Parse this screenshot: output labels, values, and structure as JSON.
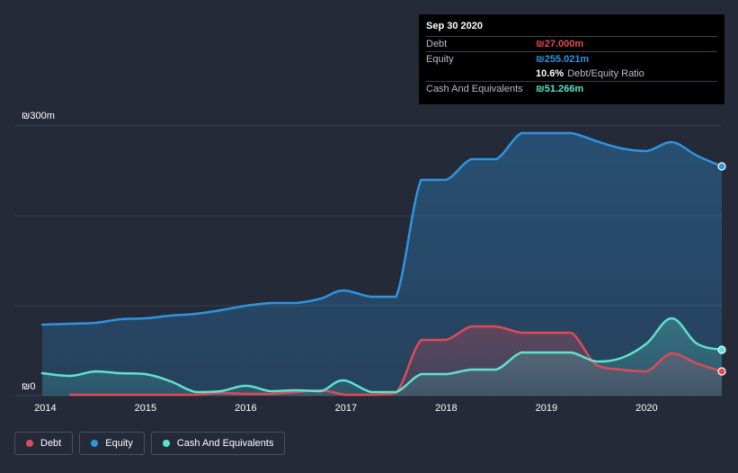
{
  "colors": {
    "debt": "#e04a57",
    "equity": "#2f94e0",
    "cash": "#5ee2d0",
    "grid": "#3a404c"
  },
  "tooltip": {
    "date": "Sep 30 2020",
    "debt_label": "Debt",
    "debt_value": "₪27.000m",
    "equity_label": "Equity",
    "equity_value": "₪255.021m",
    "ratio_value": "10.6%",
    "ratio_label": "Debt/Equity Ratio",
    "cash_label": "Cash And Equivalents",
    "cash_value": "₪51.266m"
  },
  "legend": [
    {
      "label": "Debt",
      "key": "debt"
    },
    {
      "label": "Equity",
      "key": "equity"
    },
    {
      "label": "Cash And Equivalents",
      "key": "cash"
    }
  ],
  "chart_data": {
    "type": "area",
    "ylim": [
      0,
      300
    ],
    "xlim": [
      2013.97,
      2020.75
    ],
    "ytick_labels": [
      {
        "value": 300,
        "label": "₪300m"
      },
      {
        "value": 0,
        "label": "₪0"
      }
    ],
    "xtick_labels": [
      {
        "value": 2014,
        "label": "2014"
      },
      {
        "value": 2015,
        "label": "2015"
      },
      {
        "value": 2016,
        "label": "2016"
      },
      {
        "value": 2017,
        "label": "2017"
      },
      {
        "value": 2018,
        "label": "2018"
      },
      {
        "value": 2019,
        "label": "2019"
      },
      {
        "value": 2020,
        "label": "2020"
      }
    ],
    "grid": true,
    "series": [
      {
        "name": "Equity",
        "key": "equity",
        "points": [
          [
            2013.97,
            79
          ],
          [
            2014.25,
            80
          ],
          [
            2014.5,
            81
          ],
          [
            2014.75,
            85
          ],
          [
            2015.0,
            86
          ],
          [
            2015.25,
            89
          ],
          [
            2015.5,
            91
          ],
          [
            2015.75,
            95
          ],
          [
            2016.0,
            100
          ],
          [
            2016.25,
            103
          ],
          [
            2016.5,
            103
          ],
          [
            2016.75,
            108
          ],
          [
            2016.97,
            117
          ],
          [
            2017.25,
            110
          ],
          [
            2017.5,
            110
          ],
          [
            2017.75,
            240
          ],
          [
            2018.0,
            240
          ],
          [
            2018.25,
            263
          ],
          [
            2018.5,
            263
          ],
          [
            2018.75,
            292
          ],
          [
            2019.0,
            292
          ],
          [
            2019.25,
            292
          ],
          [
            2019.5,
            283
          ],
          [
            2019.75,
            275
          ],
          [
            2020.0,
            272
          ],
          [
            2020.25,
            282
          ],
          [
            2020.5,
            267
          ],
          [
            2020.75,
            255
          ]
        ]
      },
      {
        "name": "Debt",
        "key": "debt",
        "points": [
          [
            2014.25,
            1
          ],
          [
            2014.5,
            1
          ],
          [
            2014.75,
            1
          ],
          [
            2015.0,
            1
          ],
          [
            2015.25,
            1
          ],
          [
            2015.5,
            1
          ],
          [
            2015.75,
            3
          ],
          [
            2016.0,
            2
          ],
          [
            2016.25,
            2
          ],
          [
            2016.5,
            4
          ],
          [
            2016.75,
            6
          ],
          [
            2017.0,
            1
          ],
          [
            2017.25,
            1
          ],
          [
            2017.5,
            3
          ],
          [
            2017.75,
            62
          ],
          [
            2018.0,
            62
          ],
          [
            2018.25,
            77
          ],
          [
            2018.5,
            77
          ],
          [
            2018.75,
            70
          ],
          [
            2019.0,
            70
          ],
          [
            2019.25,
            70
          ],
          [
            2019.5,
            34
          ],
          [
            2019.75,
            29
          ],
          [
            2020.0,
            27
          ],
          [
            2020.25,
            47
          ],
          [
            2020.5,
            36
          ],
          [
            2020.75,
            27
          ]
        ]
      },
      {
        "name": "Cash And Equivalents",
        "key": "cash",
        "points": [
          [
            2013.97,
            25
          ],
          [
            2014.25,
            22
          ],
          [
            2014.5,
            27
          ],
          [
            2014.75,
            25
          ],
          [
            2015.0,
            24
          ],
          [
            2015.25,
            16
          ],
          [
            2015.5,
            4
          ],
          [
            2015.75,
            5
          ],
          [
            2016.0,
            11
          ],
          [
            2016.25,
            5
          ],
          [
            2016.5,
            6
          ],
          [
            2016.75,
            5
          ],
          [
            2016.97,
            17
          ],
          [
            2017.25,
            4
          ],
          [
            2017.5,
            4
          ],
          [
            2017.75,
            24
          ],
          [
            2018.0,
            24
          ],
          [
            2018.25,
            29
          ],
          [
            2018.5,
            29
          ],
          [
            2018.75,
            48
          ],
          [
            2019.0,
            48
          ],
          [
            2019.25,
            48
          ],
          [
            2019.5,
            38
          ],
          [
            2019.75,
            42
          ],
          [
            2020.0,
            58
          ],
          [
            2020.25,
            86
          ],
          [
            2020.5,
            58
          ],
          [
            2020.75,
            51
          ]
        ]
      }
    ]
  }
}
